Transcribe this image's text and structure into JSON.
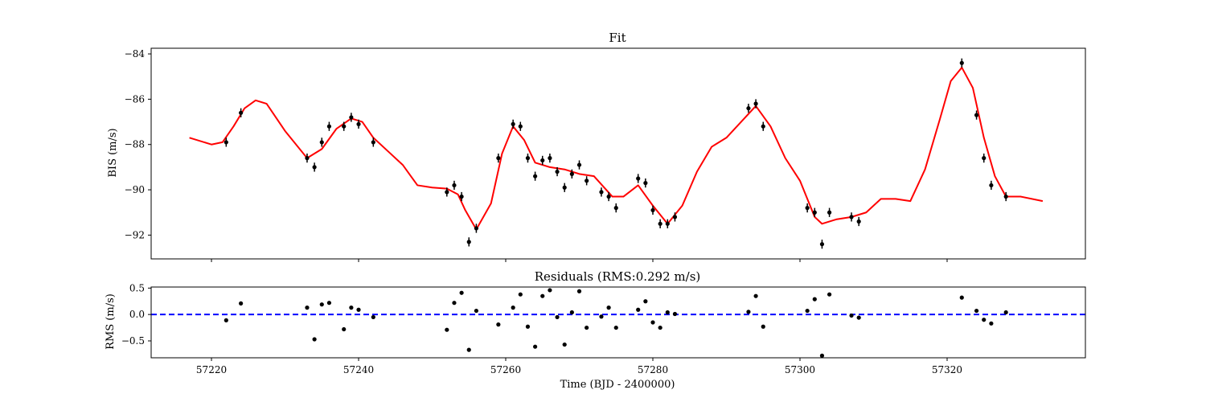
{
  "chart_data": [
    {
      "type": "scatter",
      "title": "Fit",
      "xlabel": "",
      "ylabel": "BIS (m/s)",
      "xlim": [
        57211.8,
        57338.8
      ],
      "ylim": [
        -93.05,
        -83.75
      ],
      "x_ticks": [
        57220,
        57240,
        57260,
        57280,
        57300,
        57320
      ],
      "y_ticks": [
        -84,
        -86,
        -88,
        -90,
        -92
      ],
      "y_tick_labels": [
        "−84",
        "−86",
        "−88",
        "−90",
        "−92"
      ],
      "grid": false,
      "colors": {
        "points": "#000000",
        "model": "#ff0000"
      },
      "series": [
        {
          "kind": "points_with_errorbars",
          "yerr": 0.2,
          "x": [
            57222,
            57224,
            57233,
            57234,
            57235,
            57236,
            57238,
            57239,
            57240,
            57242,
            57252,
            57253,
            57254,
            57255,
            57256,
            57259,
            57261,
            57262,
            57263,
            57264,
            57265,
            57266,
            57267,
            57268,
            57269,
            57270,
            57271,
            57273,
            57274,
            57275,
            57278,
            57279,
            57280,
            57281,
            57282,
            57283,
            57293,
            57294,
            57295,
            57301,
            57302,
            57303,
            57304,
            57307,
            57308,
            57322,
            57324,
            57325,
            57326,
            57328
          ],
          "y": [
            -87.9,
            -86.6,
            -88.6,
            -89.0,
            -87.9,
            -87.2,
            -87.2,
            -86.8,
            -87.1,
            -87.9,
            -90.1,
            -89.8,
            -90.3,
            -92.3,
            -91.7,
            -88.6,
            -87.1,
            -87.2,
            -88.6,
            -89.4,
            -88.7,
            -88.6,
            -89.2,
            -89.9,
            -89.3,
            -88.9,
            -89.6,
            -90.1,
            -90.3,
            -90.8,
            -89.5,
            -89.7,
            -90.9,
            -91.5,
            -91.5,
            -91.2,
            -86.4,
            -86.2,
            -87.2,
            -90.8,
            -91.0,
            -92.4,
            -91.0,
            -91.2,
            -91.4,
            -84.4,
            -86.7,
            -88.6,
            -89.8,
            -90.3
          ]
        },
        {
          "kind": "model_line",
          "x": [
            57217,
            57220,
            57221.5,
            57223,
            57224.5,
            57226,
            57227.5,
            57230,
            57233,
            57235,
            57237,
            57239,
            57240.5,
            57242,
            57244,
            57246,
            57248,
            57250,
            57252,
            57253.5,
            57254.5,
            57256,
            57258,
            57259.5,
            57261,
            57262.5,
            57264,
            57266,
            57268,
            57270,
            57272,
            57274.5,
            57276,
            57278,
            57280,
            57282,
            57284,
            57286,
            57288,
            57290,
            57292,
            57294,
            57296,
            57298,
            57300,
            57302,
            57303,
            57305,
            57307,
            57309,
            57311,
            57313,
            57315,
            57317,
            57319,
            57320.5,
            57322,
            57323.5,
            57325,
            57326.5,
            57328,
            57330,
            57333
          ],
          "y": [
            -87.7,
            -88.0,
            -87.9,
            -87.2,
            -86.4,
            -86.05,
            -86.2,
            -87.4,
            -88.6,
            -88.2,
            -87.3,
            -86.85,
            -87.0,
            -87.7,
            -88.3,
            -88.9,
            -89.8,
            -89.9,
            -89.95,
            -90.2,
            -90.9,
            -91.75,
            -90.6,
            -88.4,
            -87.2,
            -87.8,
            -88.8,
            -89.0,
            -89.1,
            -89.3,
            -89.4,
            -90.3,
            -90.3,
            -89.8,
            -90.7,
            -91.5,
            -90.7,
            -89.2,
            -88.1,
            -87.7,
            -87.0,
            -86.3,
            -87.2,
            -88.6,
            -89.6,
            -91.2,
            -91.5,
            -91.3,
            -91.2,
            -91.0,
            -90.4,
            -90.4,
            -90.5,
            -89.1,
            -86.9,
            -85.2,
            -84.6,
            -85.5,
            -87.7,
            -89.4,
            -90.3,
            -90.3,
            -90.5
          ]
        }
      ]
    },
    {
      "type": "scatter",
      "title": "Residuals (RMS:0.292 m/s)",
      "xlabel": "Time (BJD - 2400000)",
      "ylabel": "RMS (m/s)",
      "xlim": [
        57211.8,
        57338.8
      ],
      "ylim": [
        -0.82,
        0.52
      ],
      "x_ticks": [
        57220,
        57240,
        57260,
        57280,
        57300,
        57320
      ],
      "x_tick_labels": [
        "57220",
        "57240",
        "57260",
        "57280",
        "57300",
        "57320"
      ],
      "y_ticks": [
        0.5,
        0.0,
        -0.5
      ],
      "y_tick_labels": [
        "0.5",
        "0.0",
        "−0.5"
      ],
      "grid": false,
      "reference_line": {
        "y": 0.0,
        "style": "dashed",
        "color": "#0000ff"
      },
      "colors": {
        "points": "#000000"
      },
      "series": [
        {
          "kind": "points",
          "x": [
            57222,
            57224,
            57233,
            57234,
            57235,
            57236,
            57238,
            57239,
            57240,
            57242,
            57252,
            57253,
            57254,
            57255,
            57256,
            57259,
            57261,
            57262,
            57263,
            57264,
            57265,
            57266,
            57267,
            57268,
            57269,
            57270,
            57271,
            57273,
            57274,
            57275,
            57278,
            57279,
            57280,
            57281,
            57282,
            57283,
            57293,
            57294,
            57295,
            57301,
            57302,
            57303,
            57304,
            57307,
            57308,
            57322,
            57324,
            57325,
            57326,
            57328
          ],
          "y": [
            -0.11,
            0.21,
            0.13,
            -0.47,
            0.19,
            0.22,
            -0.28,
            0.13,
            0.09,
            -0.05,
            -0.29,
            0.22,
            0.41,
            -0.67,
            0.07,
            -0.19,
            0.13,
            0.38,
            -0.23,
            -0.61,
            0.35,
            0.46,
            -0.05,
            -0.57,
            0.04,
            0.44,
            -0.25,
            -0.04,
            0.13,
            -0.25,
            0.09,
            0.25,
            -0.15,
            -0.25,
            0.04,
            0.01,
            0.05,
            0.35,
            -0.23,
            0.07,
            0.29,
            -0.78,
            0.38,
            -0.02,
            -0.06,
            0.32,
            0.07,
            -0.1,
            -0.17,
            0.04
          ]
        }
      ]
    }
  ]
}
